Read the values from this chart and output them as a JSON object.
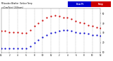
{
  "title_line1": "Milwaukee Weather  Outdoor Temp",
  "title_line2": "vs Dew Point  (24 Hours)",
  "background_color": "#ffffff",
  "grid_color": "#aaaaaa",
  "ylim": [
    10,
    55
  ],
  "xlim": [
    0,
    24
  ],
  "yticks": [
    10,
    20,
    30,
    40,
    50
  ],
  "ytick_labels": [
    "10",
    "20",
    "30",
    "40",
    "50"
  ],
  "legend_temp_color": "#cc0000",
  "legend_dew_color": "#0000cc",
  "legend_temp_label": "Temp",
  "legend_dew_label": "Dew Pt",
  "temp_color": "#cc0000",
  "dew_color": "#0000cc",
  "temp_x": [
    0,
    1,
    2,
    3,
    4,
    5,
    6,
    7,
    8,
    9,
    10,
    11,
    12,
    13,
    14,
    15,
    16,
    17,
    18,
    19,
    20,
    21,
    22,
    23,
    24
  ],
  "temp_y": [
    32,
    32,
    31,
    31,
    31,
    30,
    30,
    33,
    37,
    40,
    43,
    46,
    47,
    48,
    47,
    46,
    46,
    44,
    42,
    41,
    40,
    38,
    37,
    36,
    35
  ],
  "dew_x": [
    0,
    1,
    2,
    3,
    4,
    5,
    6,
    7,
    8,
    9,
    10,
    11,
    12,
    13,
    14,
    15,
    16,
    17,
    18,
    19,
    20,
    21,
    22,
    23,
    24
  ],
  "dew_y": [
    14,
    14,
    14,
    14,
    14,
    14,
    14,
    16,
    20,
    23,
    26,
    28,
    30,
    31,
    32,
    33,
    33,
    32,
    31,
    30,
    30,
    29,
    28,
    28,
    27
  ],
  "xtick_positions": [
    0,
    2,
    4,
    6,
    8,
    10,
    12,
    14,
    16,
    18,
    20,
    22,
    24
  ],
  "xtick_labels": [
    "12",
    "2",
    "4",
    "6",
    "8",
    "10",
    "12",
    "2",
    "4",
    "6",
    "8",
    "10",
    "12"
  ],
  "vgrid_positions": [
    2,
    4,
    6,
    8,
    10,
    12,
    14,
    16,
    18,
    20,
    22
  ]
}
